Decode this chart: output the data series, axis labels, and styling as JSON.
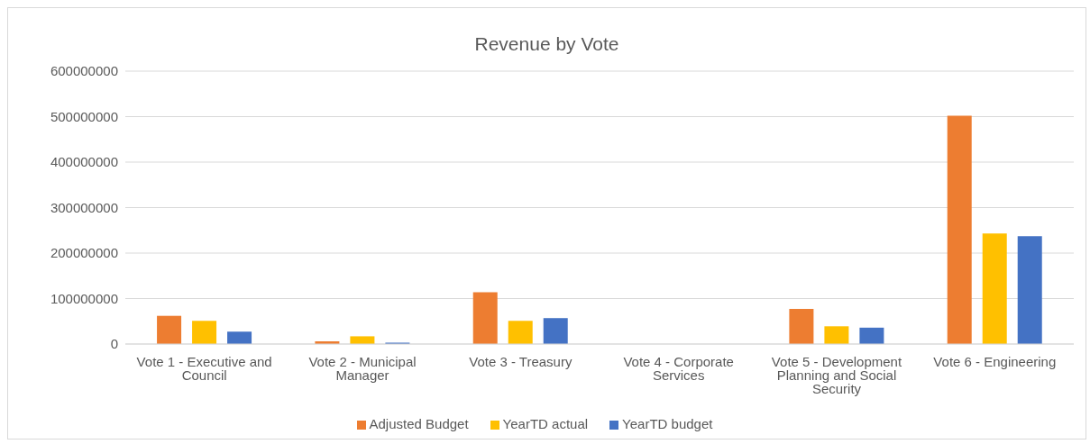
{
  "chart_data": {
    "type": "bar",
    "title": "Revenue by Vote",
    "categories": [
      "Vote 1 - Executive and Council",
      "Vote 2 - Municipal Manager",
      "Vote 3 - Treasury",
      "Vote 4 - Corporate Services",
      "Vote 5 - Development Planning and Social Security",
      "Vote 6 - Engineering"
    ],
    "series": [
      {
        "name": "Adjusted Budget",
        "color": "#ed7d31",
        "values": [
          62000000,
          6000000,
          114000000,
          0,
          77000000,
          502000000
        ]
      },
      {
        "name": "YearTD actual",
        "color": "#ffc000",
        "values": [
          51000000,
          17000000,
          51000000,
          0,
          39000000,
          243000000
        ]
      },
      {
        "name": "YearTD budget",
        "color": "#4472c4",
        "values": [
          27000000,
          3000000,
          57000000,
          0,
          36000000,
          237000000
        ]
      }
    ],
    "ylim": [
      0,
      600000000
    ],
    "yticks": [
      0,
      100000000,
      200000000,
      300000000,
      400000000,
      500000000,
      600000000
    ],
    "grid": "y",
    "legend": "bottom"
  }
}
